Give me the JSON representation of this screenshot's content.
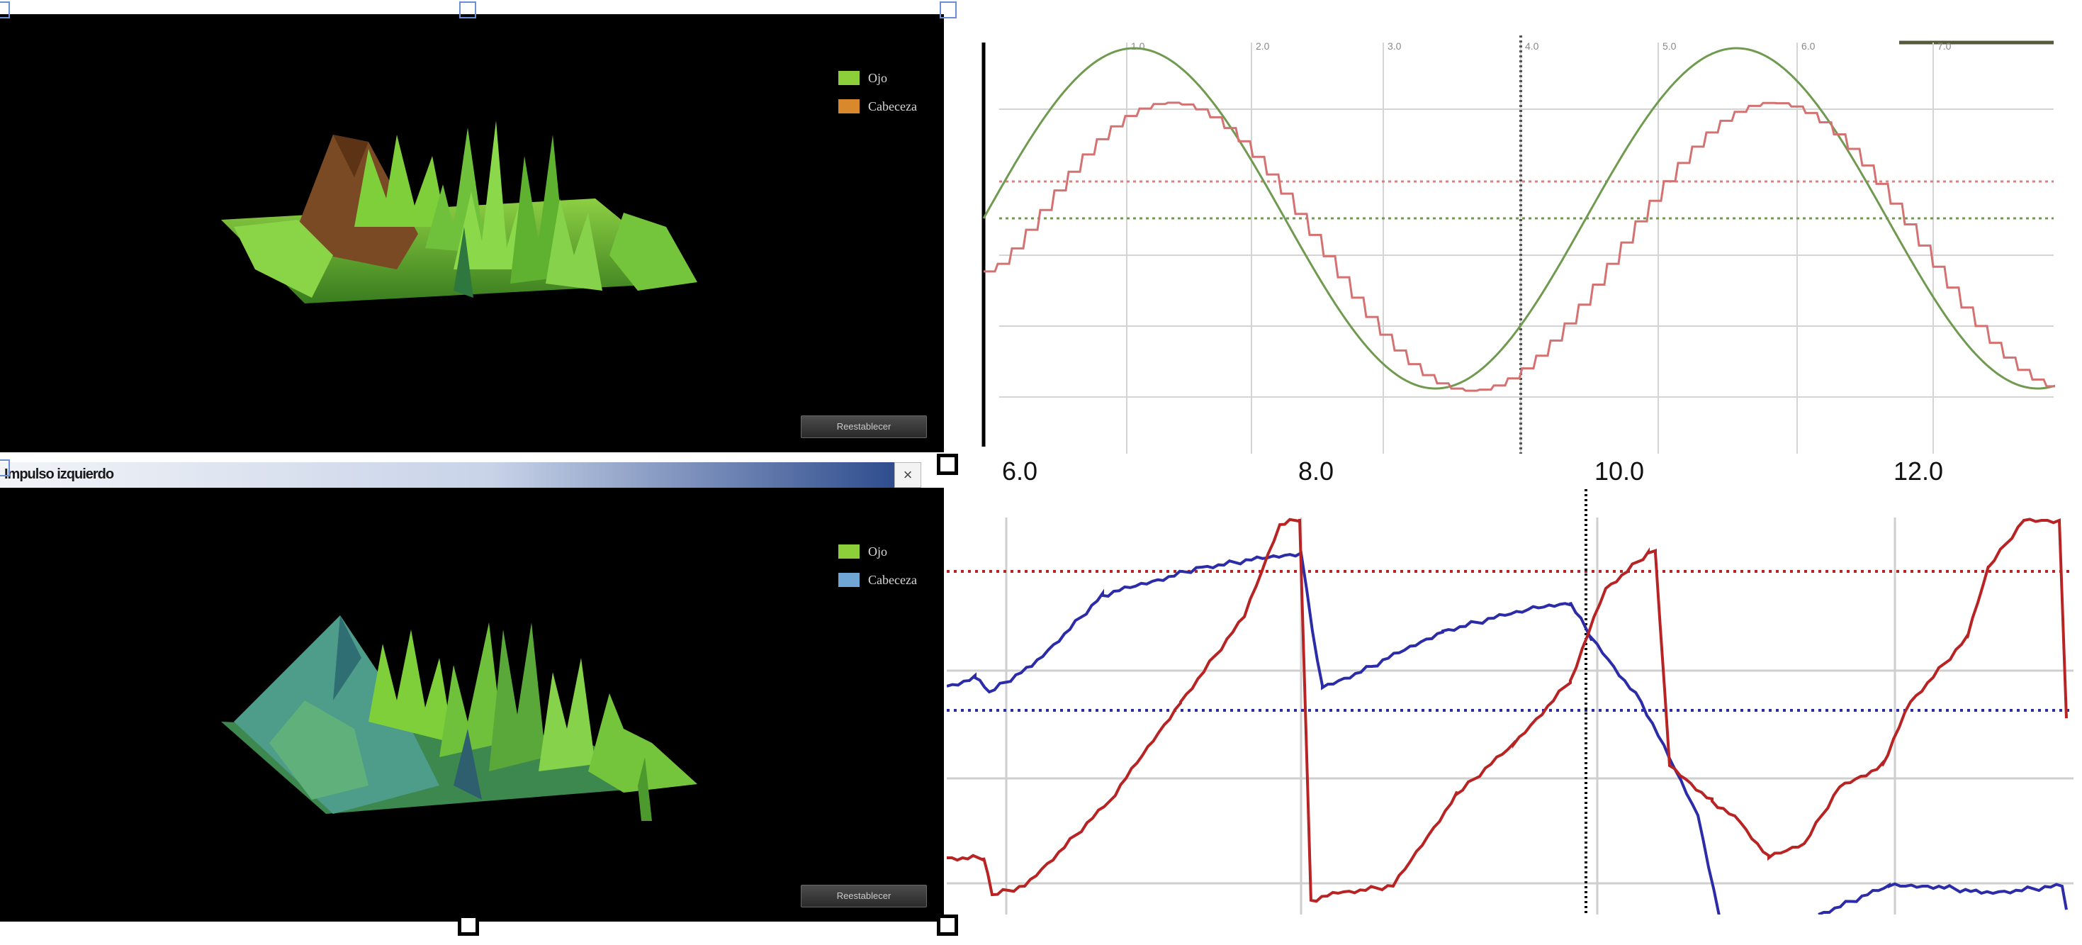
{
  "panels": [
    {
      "legend": [
        {
          "label": "Ojo",
          "color": "#8ccf3a"
        },
        {
          "label": "Cabeceza",
          "color": "#d9892b"
        }
      ],
      "button_label": "Reestablecer"
    },
    {
      "legend": [
        {
          "label": "Ojo",
          "color": "#8ccf3a"
        },
        {
          "label": "Cabeceza",
          "color": "#6fa6d6"
        }
      ],
      "button_label": "Reestablecer"
    }
  ],
  "title_bar": {
    "title": "Impulso izquierdo",
    "close_label": "×"
  },
  "chart_top": {
    "tick_labels": [
      "1.0",
      "2.0",
      "3.0",
      "4.0",
      "5.0",
      "6.0",
      "7.0"
    ],
    "colors": {
      "fast": "#6f9a4f",
      "slow": "#d47272"
    }
  },
  "chart_bottom": {
    "tick_labels": [
      "6.0",
      "8.0",
      "10.0",
      "12.0"
    ],
    "colors": {
      "red": "#b82424",
      "blue": "#2c2ca8"
    }
  }
}
